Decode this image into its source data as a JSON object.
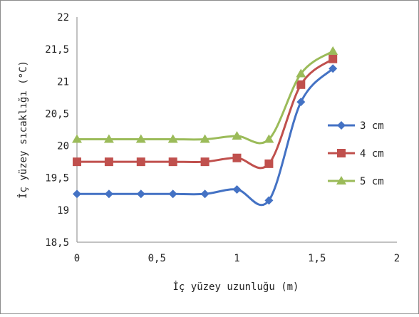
{
  "chart_data": {
    "type": "line",
    "title": "",
    "xlabel": "İç yüzey uzunluğu (m)",
    "ylabel": "İç yüzey sıcaklığı (°C)",
    "xlim": [
      0,
      2
    ],
    "ylim": [
      18.5,
      22
    ],
    "x_tick_labels": [
      "0",
      "0,5",
      "1",
      "1,5",
      "2"
    ],
    "y_tick_labels": [
      "18,5",
      "19",
      "19,5",
      "20",
      "20,5",
      "21",
      "21,5",
      "22"
    ],
    "grid": false,
    "legend_position": "right",
    "x": [
      0,
      0.2,
      0.4,
      0.6,
      0.8,
      1.0,
      1.2,
      1.4,
      1.6
    ],
    "series": [
      {
        "name": "3 cm",
        "color": "#4472C4",
        "marker": "diamond",
        "values": [
          19.25,
          19.25,
          19.25,
          19.25,
          19.25,
          19.32,
          19.15,
          20.68,
          21.2
        ]
      },
      {
        "name": "4 cm",
        "color": "#C0504D",
        "marker": "square",
        "values": [
          19.75,
          19.75,
          19.75,
          19.75,
          19.75,
          19.81,
          19.72,
          20.95,
          21.35
        ]
      },
      {
        "name": "5 cm",
        "color": "#9BBB59",
        "marker": "triangle",
        "values": [
          20.1,
          20.1,
          20.1,
          20.1,
          20.1,
          20.15,
          20.1,
          21.12,
          21.47
        ]
      }
    ]
  }
}
